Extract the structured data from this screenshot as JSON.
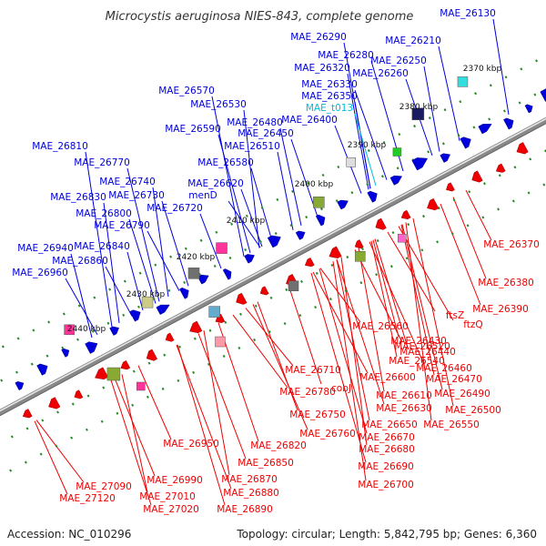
{
  "title": "Microcystis aeruginosa NIES-843, complete genome",
  "footer": {
    "accession": "Accession: NC_010296",
    "summary": "Topology: circular; Length: 5,842,795 bp; Genes: 6,360"
  },
  "colors": {
    "forward": "#0000dd",
    "reverse": "#ee0000",
    "trna": "#00bbdd",
    "backbone": "#888888"
  },
  "ticks": [
    "2370 kbp",
    "2380 kbp",
    "2390 kbp",
    "2400 kbp",
    "2410 kbp",
    "2420 kbp",
    "2430 kbp",
    "2440 kbp"
  ],
  "top_labels": [
    "MAE_26130",
    "MAE_26210",
    "MAE_26290",
    "MAE_26280",
    "MAE_26250",
    "MAE_26320",
    "MAE_26260",
    "MAE_26330",
    "MAE_26350",
    "MAE_t013",
    "MAE_26400",
    "MAE_26570",
    "MAE_26530",
    "MAE_26480",
    "MAE_26450",
    "MAE_26590",
    "MAE_26510",
    "MAE_26580",
    "MAE_26810",
    "MAE_26770",
    "MAE_26740",
    "MAE_26620",
    "MAE_26730",
    "menD",
    "MAE_26830",
    "MAE_26720",
    "MAE_26800",
    "MAE_26790",
    "MAE_26840",
    "MAE_26940",
    "MAE_26860",
    "MAE_26960"
  ],
  "bottom_labels": [
    "MAE_26370",
    "MAE_26380",
    "MAE_26390",
    "ftsZ",
    "ftzQ",
    "MAE_26430",
    "MAE_26440",
    "MAE_26560",
    "MAE_26520",
    "MAE_26460",
    "MAE_26540",
    "MAE_26470",
    "MAE_26490",
    "MAE_26710",
    "MAE_26600",
    "MAE_26610",
    "cobJ",
    "MAE_26500",
    "MAE_26630",
    "MAE_26780",
    "MAE_26550",
    "MAE_26650",
    "MAE_26750",
    "MAE_26670",
    "MAE_26760",
    "MAE_26680",
    "MAE_26950",
    "MAE_26820",
    "MAE_26850",
    "MAE_26690",
    "MAE_26870",
    "MAE_26700",
    "MAE_26990",
    "MAE_27090",
    "MAE_26880",
    "MAE_27010",
    "MAE_27120",
    "MAE_27020",
    "MAE_26890"
  ]
}
